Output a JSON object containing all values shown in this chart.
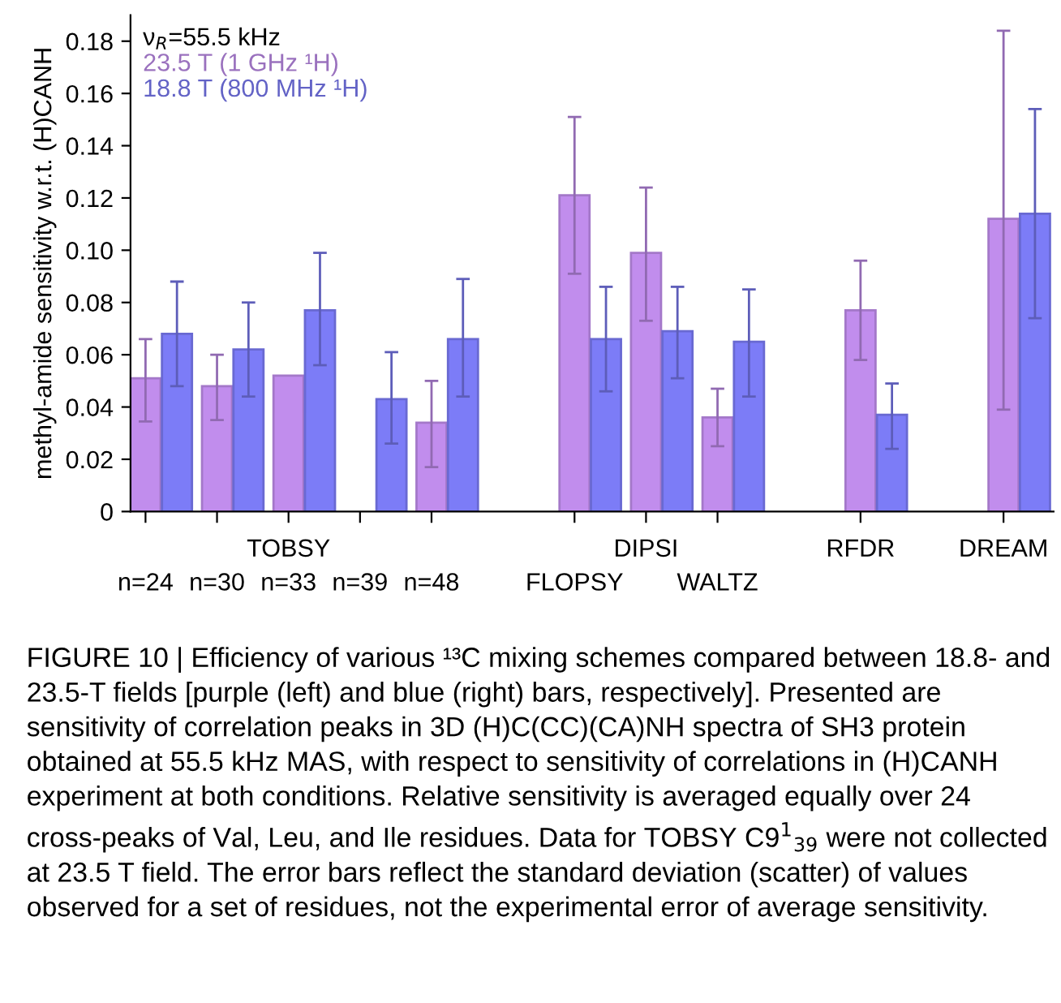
{
  "chart_data": {
    "type": "bar",
    "ylabel": "methyl-amide sensitivity w.r.t. (H)CANH",
    "legend_title": "ν$_{R}$=55.5 kHz",
    "categories": [
      "n=24",
      "n=30",
      "n=33",
      "n=39",
      "n=48",
      null,
      "FLOPSY",
      "DIPSI",
      "WALTZ",
      null,
      "RFDR",
      null,
      "DREAM"
    ],
    "series": [
      {
        "name": "23.5 T (1 GHz ¹H)",
        "color": "#c18ded",
        "values": [
          0.051,
          0.048,
          0.052,
          null,
          0.034,
          null,
          0.121,
          0.099,
          0.036,
          null,
          0.077,
          null,
          0.112
        ],
        "errors": [
          [
            0.0345,
            0.066
          ],
          [
            0.035,
            0.06
          ],
          null,
          null,
          [
            0.017,
            0.05
          ],
          null,
          [
            0.091,
            0.151
          ],
          [
            0.073,
            0.124
          ],
          [
            0.025,
            0.047
          ],
          null,
          [
            0.058,
            0.096
          ],
          null,
          [
            0.039,
            0.184
          ]
        ]
      },
      {
        "name": "18.8 T (800 MHz ¹H)",
        "color": "#7c7cf7",
        "values": [
          0.068,
          0.062,
          0.077,
          0.043,
          0.066,
          null,
          0.066,
          0.069,
          0.065,
          null,
          0.037,
          null,
          0.114
        ],
        "errors": [
          [
            0.048,
            0.088
          ],
          [
            0.044,
            0.08
          ],
          [
            0.056,
            0.099
          ],
          [
            0.026,
            0.061
          ],
          [
            0.044,
            0.089
          ],
          null,
          [
            0.046,
            0.086
          ],
          [
            0.051,
            0.086
          ],
          [
            0.044,
            0.085
          ],
          null,
          [
            0.024,
            0.049
          ],
          null,
          [
            0.074,
            0.154
          ]
        ]
      }
    ],
    "ylim": [
      0,
      0.19
    ],
    "yticks": [
      0,
      {
        "value": 0.02,
        "label": "0.02"
      },
      {
        "value": 0.04,
        "label": "0.04"
      },
      {
        "value": 0.06,
        "label": "0.06"
      },
      {
        "value": 0.08,
        "label": "0.08"
      },
      {
        "value": 0.1,
        "label": "0.10"
      },
      {
        "value": 0.12,
        "label": "0.12"
      },
      {
        "value": 0.14,
        "label": "0.14"
      },
      {
        "value": 0.16,
        "label": "0.16"
      },
      {
        "value": 0.18,
        "label": "0.18"
      }
    ],
    "legend": "top left",
    "grid": false,
    "annotations": [
      "TOBSY",
      "FIGURE 10 | Efficiency of various ¹³C mixing schemes compared between 18.8- and 23.5-T fields [purple (left) and blue (right) bars, respectively]. Presented are sensitivity of correlation peaks in 3D (H)C(CC)(CA)NH spectra of SH3 protein obtained at 55.5 kHz MAS, with respect to sensitivity of correlations in (H)CANH experiment at both conditions. Relative sensitivity is averaged equally over 24 cross-peaks of Val, Leu, and Ile residues. Data for TOBSY C9$^{1}$$_{39}$ were not collected at 23.5 T field. The error bars reflect the standard deviation (scatter) of values observed for a set of residues, not the experimental error of average sensitivity."
    ]
  }
}
